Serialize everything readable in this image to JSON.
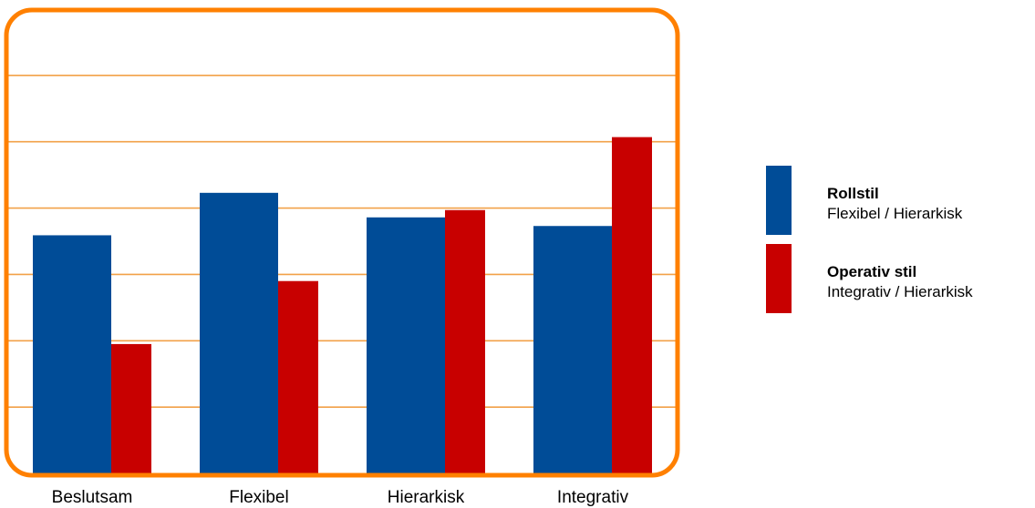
{
  "chart_data": {
    "type": "bar",
    "categories": [
      "Beslutsam",
      "Flexibel",
      "Hierarkisk",
      "Integrativ"
    ],
    "series": [
      {
        "name": "Rollstil",
        "subtitle": "Flexibel / Hierarkisk",
        "color": "#004c97",
        "values": [
          3.59,
          4.23,
          3.86,
          3.73
        ]
      },
      {
        "name": "Operativ stil",
        "subtitle": "Integrativ / Hierarkisk",
        "color": "#c80000",
        "values": [
          1.95,
          2.9,
          3.97,
          5.07
        ]
      }
    ],
    "ylim": [
      0,
      7
    ],
    "grid": true,
    "grid_color": "#f2a148",
    "frame_color": "#ff8000",
    "legend_position": "right"
  }
}
